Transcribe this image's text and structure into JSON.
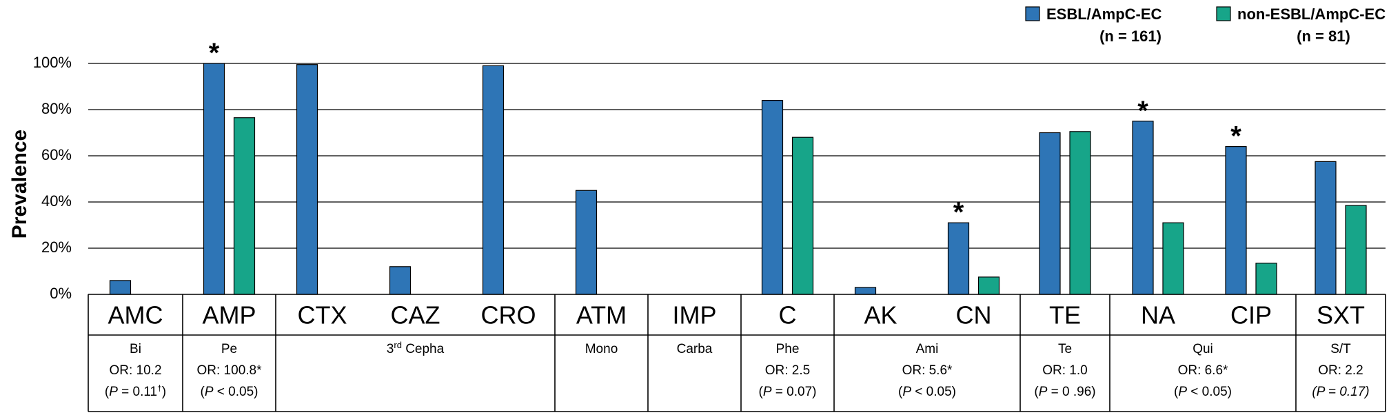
{
  "chart_data": {
    "type": "bar",
    "ylabel": "Prevalence",
    "ylim": [
      0,
      100
    ],
    "yticks": [
      "0%",
      "20%",
      "40%",
      "60%",
      "80%",
      "100%"
    ],
    "grid": "horizontal",
    "legend_position": "top-right",
    "categories": [
      "AMC",
      "AMP",
      "CTX",
      "CAZ",
      "CRO",
      "ATM",
      "IMP",
      "C",
      "AK",
      "CN",
      "TE",
      "NA",
      "CIP",
      "SXT"
    ],
    "series": [
      {
        "name": "ESBL/AmpC-EC",
        "n_label": "(n = 161)",
        "color": "#2E75B6",
        "values": [
          6,
          100,
          99.5,
          12,
          99,
          45,
          0,
          84,
          3,
          31,
          70,
          75,
          64,
          57.5
        ]
      },
      {
        "name": "non-ESBL/AmpC-EC",
        "n_label": "(n = 81)",
        "color": "#17A589",
        "values": [
          0,
          76.5,
          0,
          0,
          0,
          0,
          0,
          68,
          0,
          7.5,
          70.5,
          31,
          13.5,
          38.5
        ]
      }
    ],
    "significant_markers": [
      {
        "category": "AMP",
        "label": "*"
      },
      {
        "category": "CN",
        "label": "*"
      },
      {
        "category": "NA",
        "label": "*"
      },
      {
        "category": "CIP",
        "label": "*"
      }
    ],
    "groups": [
      {
        "name": "Bi",
        "sup": "",
        "or": "OR: 10.2",
        "p_pre": "(",
        "p_italic": "P",
        "p_post": " = 0.11",
        "p_sup": "†",
        "p_close": ")",
        "start": 0,
        "end": 0
      },
      {
        "name": "Pe",
        "sup": "",
        "or": "OR: 100.8*",
        "p_pre": "(",
        "p_italic": "P",
        "p_post": " < 0.05",
        "p_sup": "",
        "p_close": ")",
        "start": 1,
        "end": 1
      },
      {
        "name_pre": "3",
        "sup": "rd",
        "name": " Cepha",
        "or": "",
        "p_pre": "",
        "p_italic": "",
        "p_post": "",
        "p_sup": "",
        "p_close": "",
        "start": 2,
        "end": 4
      },
      {
        "name": "Mono",
        "sup": "",
        "or": "",
        "p_pre": "",
        "p_italic": "",
        "p_post": "",
        "p_sup": "",
        "p_close": "",
        "start": 5,
        "end": 5
      },
      {
        "name": "Carba",
        "sup": "",
        "or": "",
        "p_pre": "",
        "p_italic": "",
        "p_post": "",
        "p_sup": "",
        "p_close": "",
        "start": 6,
        "end": 6
      },
      {
        "name": "Phe",
        "sup": "",
        "or": "OR: 2.5",
        "p_pre": "(",
        "p_italic": "P",
        "p_post": " = 0.07",
        "p_sup": "",
        "p_close": ")",
        "start": 7,
        "end": 7
      },
      {
        "name": "Ami",
        "sup": "",
        "or": "OR: 5.6*",
        "p_pre": "(",
        "p_italic": "P",
        "p_post": " < 0.05",
        "p_sup": "",
        "p_close": ")",
        "start": 8,
        "end": 9
      },
      {
        "name": "Te",
        "sup": "",
        "or": "OR: 1.0",
        "p_pre": "(",
        "p_italic": "P",
        "p_post": " = 0 .96",
        "p_sup": "",
        "p_close": ")",
        "start": 10,
        "end": 10
      },
      {
        "name": "Qui",
        "sup": "",
        "or": "OR: 6.6*",
        "p_pre": "(",
        "p_italic": "P",
        "p_post": " < 0.05",
        "p_sup": "",
        "p_close": ")",
        "start": 11,
        "end": 12
      },
      {
        "name": "S/T",
        "sup": "",
        "or": "OR: 2.2",
        "p_pre": "(",
        "p_italic": "P",
        "p_post": " = 0.17",
        "p_sup": "",
        "p_close": ")",
        "start": 13,
        "end": 13,
        "all_italic_p": true
      }
    ]
  }
}
